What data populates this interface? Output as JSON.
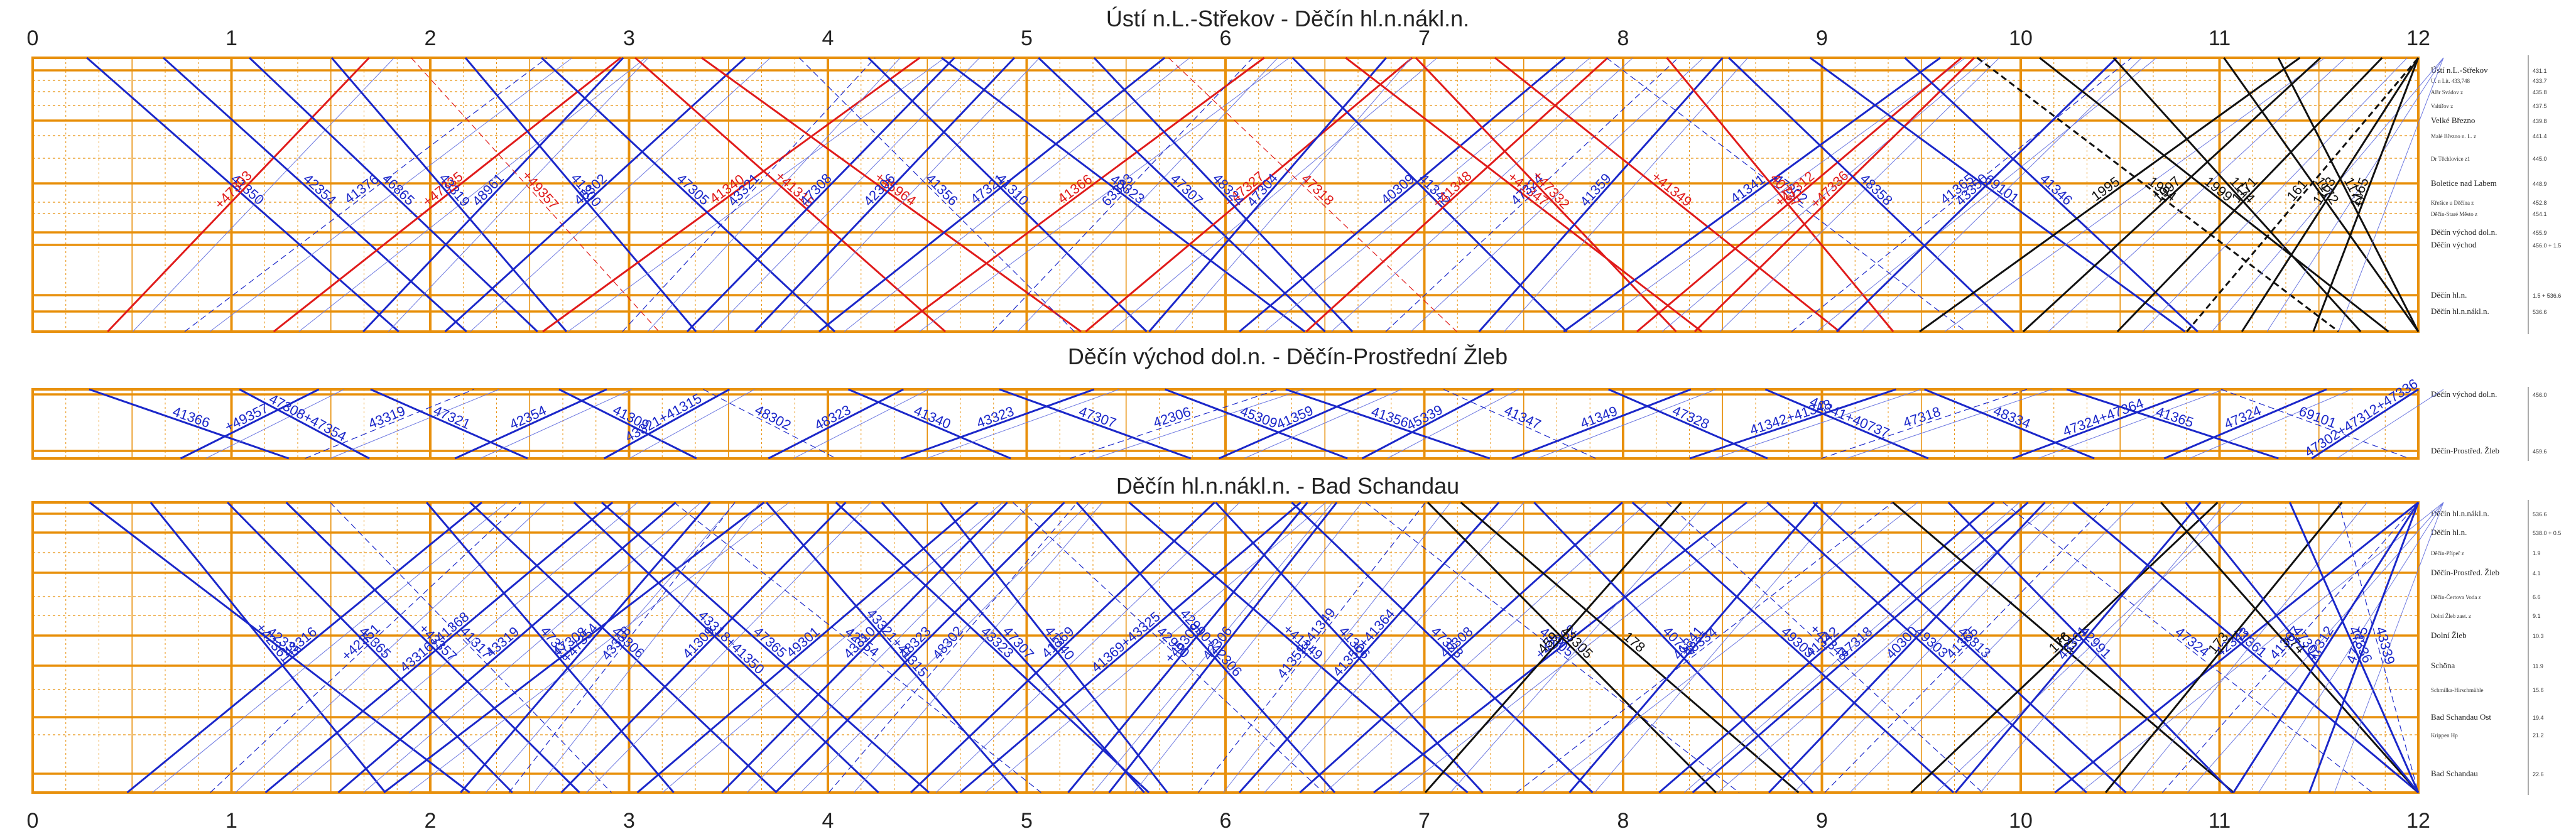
{
  "diagram": {
    "hours": [
      "0",
      "1",
      "2",
      "3",
      "4",
      "5",
      "6",
      "7",
      "8",
      "9",
      "10",
      "11",
      "12"
    ],
    "colors": {
      "grid": "#e8900c",
      "freight": "#1b27c9",
      "passenger": "#111111",
      "special": "#e01b1b"
    },
    "panels": [
      {
        "title": "Ústí n.L.-Střekov - Děčín hl.n.nákl.n.",
        "stations": [
          {
            "name": "Ústí n.L.-Střekov",
            "km": "431.1",
            "major": true,
            "small": false
          },
          {
            "name": "U. n Lit. 433,748",
            "km": "433.7",
            "major": false,
            "small": true
          },
          {
            "name": "ABr Svádov z",
            "km": "435.8",
            "major": false,
            "small": true
          },
          {
            "name": "Valtířov z",
            "km": "437.5",
            "major": false,
            "small": true
          },
          {
            "name": "Velké Březno",
            "km": "439.8",
            "major": true,
            "small": false
          },
          {
            "name": "Malé Březno n. L. z",
            "km": "441.4",
            "major": false,
            "small": true
          },
          {
            "name": "Dr Těchlovice z1",
            "km": "445.0",
            "major": false,
            "small": true
          },
          {
            "name": "Boletice nad Labem",
            "km": "448.9",
            "major": true,
            "small": false
          },
          {
            "name": "Křešice u Děčína z",
            "km": "452.8",
            "major": false,
            "small": true
          },
          {
            "name": "Děčín-Staré Město z",
            "km": "454.1",
            "major": false,
            "small": true
          },
          {
            "name": "Děčín východ dol.n.",
            "km": "455.9",
            "major": true,
            "small": false
          },
          {
            "name": "Děčín východ",
            "km": "456.0 + 1.5",
            "major": true,
            "small": false
          },
          {
            "name": "Děčín hl.n.",
            "km": "1.5 + 536.6",
            "major": true,
            "small": false
          },
          {
            "name": "Děčín hl.n.nákl.n.",
            "km": "536.6",
            "major": true,
            "small": false
          }
        ],
        "trains": [
          {
            "label": "41350",
            "color": "freight"
          },
          {
            "label": "+47303",
            "color": "special"
          },
          {
            "label": "42354",
            "color": "freight"
          },
          {
            "label": "41376",
            "color": "freight"
          },
          {
            "label": "46865",
            "color": "freight"
          },
          {
            "label": "+47335",
            "color": "special"
          },
          {
            "label": "43319",
            "color": "freight"
          },
          {
            "label": "48961",
            "color": "freight"
          },
          {
            "label": "+49357",
            "color": "special"
          },
          {
            "label": "48302",
            "color": "freight"
          },
          {
            "label": "41300",
            "color": "freight"
          },
          {
            "label": "41340",
            "color": "special"
          },
          {
            "label": "47305",
            "color": "freight"
          },
          {
            "label": "43321",
            "color": "freight"
          },
          {
            "label": "+41315",
            "color": "special"
          },
          {
            "label": "47308",
            "color": "freight"
          },
          {
            "label": "+45964",
            "color": "special"
          },
          {
            "label": "42306",
            "color": "freight"
          },
          {
            "label": "41356",
            "color": "freight"
          },
          {
            "label": "47321",
            "color": "freight"
          },
          {
            "label": "41310",
            "color": "freight"
          },
          {
            "label": "41366",
            "color": "special"
          },
          {
            "label": "48323",
            "color": "freight"
          },
          {
            "label": "63323",
            "color": "freight"
          },
          {
            "label": "47307",
            "color": "freight"
          },
          {
            "label": "+47327",
            "color": "special"
          },
          {
            "label": "48324",
            "color": "freight"
          },
          {
            "label": "47304",
            "color": "freight"
          },
          {
            "label": "47318",
            "color": "special"
          },
          {
            "label": "40309",
            "color": "freight"
          },
          {
            "label": "41342",
            "color": "freight"
          },
          {
            "label": "+41348",
            "color": "special"
          },
          {
            "label": "+41347",
            "color": "special"
          },
          {
            "label": "47324",
            "color": "freight"
          },
          {
            "label": "+47332",
            "color": "special"
          },
          {
            "label": "41359",
            "color": "freight"
          },
          {
            "label": "+41349",
            "color": "special"
          },
          {
            "label": "41341",
            "color": "freight"
          },
          {
            "label": "47302",
            "color": "freight"
          },
          {
            "label": "+47312",
            "color": "special"
          },
          {
            "label": "40737",
            "color": "special"
          },
          {
            "label": "+47336",
            "color": "special"
          },
          {
            "label": "48358",
            "color": "freight"
          },
          {
            "label": "41365",
            "color": "freight"
          },
          {
            "label": "69101",
            "color": "freight"
          },
          {
            "label": "43350",
            "color": "freight"
          },
          {
            "label": "41346",
            "color": "freight"
          },
          {
            "label": "1995",
            "color": "passenger"
          },
          {
            "label": "1994",
            "color": "passenger"
          },
          {
            "label": "1997",
            "color": "passenger"
          },
          {
            "label": "1999",
            "color": "passenger"
          },
          {
            "label": "1171",
            "color": "passenger"
          },
          {
            "label": "1174",
            "color": "passenger"
          },
          {
            "label": "161",
            "color": "passenger"
          },
          {
            "label": "1172",
            "color": "passenger"
          },
          {
            "label": "1163",
            "color": "passenger"
          },
          {
            "label": "1170",
            "color": "passenger"
          },
          {
            "label": "1165",
            "color": "passenger"
          }
        ]
      },
      {
        "title": "Děčín východ dol.n. - Děčín-Prostřední Žleb",
        "stations": [
          {
            "name": "Děčín východ dol.n.",
            "km": "456.0",
            "major": true,
            "small": false
          },
          {
            "name": "Děčín-Prostřed. Žleb",
            "km": "459.6",
            "major": true,
            "small": false
          }
        ],
        "trains": [
          {
            "label": "41366",
            "color": "freight"
          },
          {
            "label": "+49357",
            "color": "freight"
          },
          {
            "label": "47308+47354",
            "color": "freight"
          },
          {
            "label": "43319",
            "color": "freight"
          },
          {
            "label": "47321",
            "color": "freight"
          },
          {
            "label": "42354",
            "color": "freight"
          },
          {
            "label": "41309",
            "color": "freight"
          },
          {
            "label": "43321+41315",
            "color": "freight"
          },
          {
            "label": "48302",
            "color": "freight"
          },
          {
            "label": "48323",
            "color": "freight"
          },
          {
            "label": "41340",
            "color": "freight"
          },
          {
            "label": "43323",
            "color": "freight"
          },
          {
            "label": "47307",
            "color": "freight"
          },
          {
            "label": "42306",
            "color": "freight"
          },
          {
            "label": "45309",
            "color": "freight"
          },
          {
            "label": "41359",
            "color": "freight"
          },
          {
            "label": "41356",
            "color": "freight"
          },
          {
            "label": "45339",
            "color": "freight"
          },
          {
            "label": "41347",
            "color": "freight"
          },
          {
            "label": "41349",
            "color": "freight"
          },
          {
            "label": "47328",
            "color": "freight"
          },
          {
            "label": "41342+41348",
            "color": "freight"
          },
          {
            "label": "41341+40737",
            "color": "freight"
          },
          {
            "label": "47318",
            "color": "freight"
          },
          {
            "label": "48334",
            "color": "freight"
          },
          {
            "label": "47324+47364",
            "color": "freight"
          },
          {
            "label": "41365",
            "color": "freight"
          },
          {
            "label": "47324",
            "color": "freight"
          },
          {
            "label": "69101",
            "color": "freight"
          },
          {
            "label": "47302+47312+47336",
            "color": "freight"
          }
        ]
      },
      {
        "title": "Děčín hl.n.nákl.n. - Bad Schandau",
        "stations": [
          {
            "name": "Děčín hl.n.nákl.n.",
            "km": "536.6",
            "major": true,
            "small": false
          },
          {
            "name": "Děčín hl.n.",
            "km": "538.0 + 0.5",
            "major": true,
            "small": false
          },
          {
            "name": "Děčín-Přípeř z",
            "km": "1.9",
            "major": false,
            "small": true
          },
          {
            "name": "Děčín-Prostřed. Žleb",
            "km": "4.1",
            "major": true,
            "small": false
          },
          {
            "name": "Děčín-Čertova Voda z",
            "km": "6.6",
            "major": false,
            "small": true
          },
          {
            "name": "Dolní Žleb zast. z",
            "km": "9.1",
            "major": false,
            "small": true
          },
          {
            "name": "Dolní Žleb",
            "km": "10.3",
            "major": true,
            "small": false
          },
          {
            "name": "Schöna",
            "km": "11.9",
            "major": true,
            "small": false
          },
          {
            "name": "Schmilka-Hirschmühle",
            "km": "15.6",
            "major": false,
            "small": true
          },
          {
            "name": "Bad Schandau Ost",
            "km": "19.4",
            "major": true,
            "small": false
          },
          {
            "name": "Krippen Hp",
            "km": "21.2",
            "major": false,
            "small": true
          },
          {
            "name": "Bad Schandau",
            "km": "22.6",
            "major": true,
            "small": false
          }
        ],
        "trains": [
          {
            "label": "42335",
            "color": "freight"
          },
          {
            "label": "43316",
            "color": "freight"
          },
          {
            "label": "+42361",
            "color": "freight"
          },
          {
            "label": "+42351",
            "color": "freight"
          },
          {
            "label": "42365",
            "color": "freight"
          },
          {
            "label": "43316+41368",
            "color": "freight"
          },
          {
            "label": "+43357",
            "color": "freight"
          },
          {
            "label": "43319",
            "color": "freight"
          },
          {
            "label": "41317",
            "color": "freight"
          },
          {
            "label": "47308",
            "color": "freight"
          },
          {
            "label": "47321",
            "color": "freight"
          },
          {
            "label": "+47354",
            "color": "freight"
          },
          {
            "label": "43306",
            "color": "freight"
          },
          {
            "label": "43318",
            "color": "freight"
          },
          {
            "label": "43318+41350",
            "color": "freight"
          },
          {
            "label": "41309",
            "color": "freight"
          },
          {
            "label": "47365",
            "color": "freight"
          },
          {
            "label": "49301",
            "color": "freight"
          },
          {
            "label": "42354",
            "color": "freight"
          },
          {
            "label": "43310",
            "color": "freight"
          },
          {
            "label": "43321+41315",
            "color": "freight"
          },
          {
            "label": "48323",
            "color": "freight"
          },
          {
            "label": "43323",
            "color": "freight"
          },
          {
            "label": "48302",
            "color": "freight"
          },
          {
            "label": "47307",
            "color": "freight"
          },
          {
            "label": "41369",
            "color": "freight"
          },
          {
            "label": "41340",
            "color": "freight"
          },
          {
            "label": "41369+43325",
            "color": "freight"
          },
          {
            "label": "42990",
            "color": "freight"
          },
          {
            "label": "+45309",
            "color": "freight"
          },
          {
            "label": "42990+42306",
            "color": "freight"
          },
          {
            "label": "42306",
            "color": "freight"
          },
          {
            "label": "+41349",
            "color": "freight"
          },
          {
            "label": "41359+41349",
            "color": "freight"
          },
          {
            "label": "41306",
            "color": "freight"
          },
          {
            "label": "41356+41364",
            "color": "freight"
          },
          {
            "label": "47328",
            "color": "freight"
          },
          {
            "label": "49308",
            "color": "freight"
          },
          {
            "label": "43305",
            "color": "freight"
          },
          {
            "label": "+42362",
            "color": "freight"
          },
          {
            "label": "43305",
            "color": "passenger"
          },
          {
            "label": "459",
            "color": "passenger"
          },
          {
            "label": "178",
            "color": "passenger"
          },
          {
            "label": "48334",
            "color": "freight"
          },
          {
            "label": "40737",
            "color": "freight"
          },
          {
            "label": "41341",
            "color": "freight"
          },
          {
            "label": "49303",
            "color": "freight"
          },
          {
            "label": "41342",
            "color": "freight"
          },
          {
            "label": "+41348",
            "color": "freight"
          },
          {
            "label": "47318",
            "color": "freight"
          },
          {
            "label": "49303",
            "color": "freight"
          },
          {
            "label": "40300",
            "color": "freight"
          },
          {
            "label": "42313",
            "color": "freight"
          },
          {
            "label": "41365",
            "color": "freight"
          },
          {
            "label": "171",
            "color": "passenger"
          },
          {
            "label": "176",
            "color": "passenger"
          },
          {
            "label": "42991",
            "color": "freight"
          },
          {
            "label": "43301",
            "color": "freight"
          },
          {
            "label": "47324",
            "color": "freight"
          },
          {
            "label": "42343",
            "color": "freight"
          },
          {
            "label": "41361",
            "color": "freight"
          },
          {
            "label": "173",
            "color": "passenger"
          },
          {
            "label": "174",
            "color": "passenger"
          },
          {
            "label": "41367",
            "color": "freight"
          },
          {
            "label": "47302",
            "color": "freight"
          },
          {
            "label": "47312",
            "color": "freight"
          },
          {
            "label": "47336",
            "color": "freight"
          },
          {
            "label": "47335",
            "color": "freight"
          },
          {
            "label": "43339",
            "color": "freight"
          }
        ]
      }
    ]
  }
}
